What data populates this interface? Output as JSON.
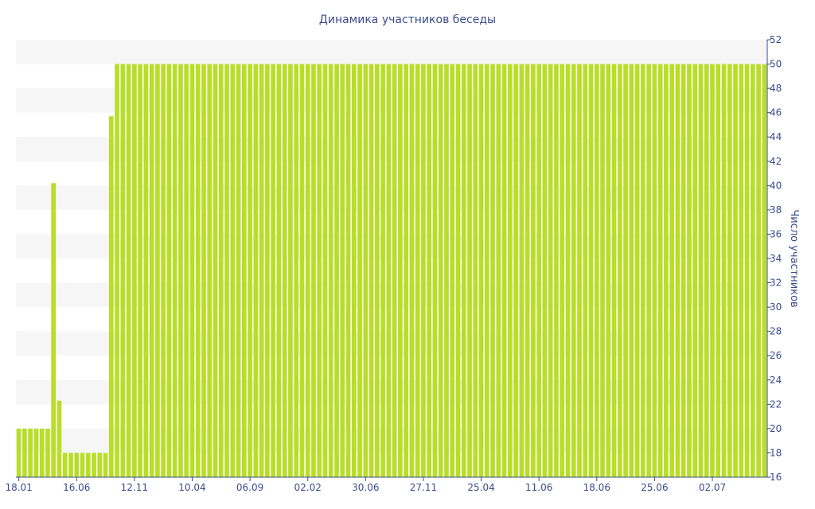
{
  "chart_data": {
    "type": "bar",
    "title": "Динамика участников беседы",
    "ylabel": "Число участников",
    "xlabel": "",
    "ylim": [
      16,
      52
    ],
    "y_ticks": [
      16,
      18,
      20,
      22,
      24,
      26,
      28,
      30,
      32,
      34,
      36,
      38,
      40,
      42,
      44,
      46,
      48,
      50,
      52
    ],
    "x_tick_labels": [
      "18.01",
      "16.06",
      "12.11",
      "10.04",
      "06.09",
      "02.02",
      "30.06",
      "27.11",
      "25.04",
      "11.06",
      "18.06",
      "25.06",
      "02.07"
    ],
    "x_tick_bar_index": [
      0,
      10,
      20,
      30,
      40,
      50,
      60,
      70,
      80,
      90,
      100,
      110,
      120
    ],
    "bar_color": "#b8de28",
    "values": [
      20,
      20,
      20,
      20,
      20,
      20,
      40.2,
      22.3,
      18,
      18,
      18,
      18,
      18,
      18,
      18,
      18,
      45.7,
      50,
      50,
      50,
      50,
      50,
      50,
      50,
      50,
      50,
      50,
      50,
      50,
      50,
      50,
      50,
      50,
      50,
      50,
      50,
      50,
      50,
      50,
      50,
      50,
      50,
      50,
      50,
      50,
      50,
      50,
      50,
      50,
      50,
      50,
      50,
      50,
      50,
      50,
      50,
      50,
      50,
      50,
      50,
      50,
      50,
      50,
      50,
      50,
      50,
      50,
      50,
      50,
      50,
      50,
      50,
      50,
      50,
      50,
      50,
      50,
      50,
      50,
      50,
      50,
      50,
      50,
      50,
      50,
      50,
      50,
      50,
      50,
      50,
      50,
      50,
      50,
      50,
      50,
      50,
      50,
      50,
      50,
      50,
      50,
      50,
      50,
      50,
      50,
      50,
      50,
      50,
      50,
      50,
      50,
      50,
      50,
      50,
      50,
      50,
      50,
      50,
      50,
      50,
      50,
      50,
      50,
      50,
      50,
      50,
      50,
      50,
      50,
      50
    ],
    "grid": "alternating-bands",
    "legend": "none",
    "y_axis_side": "right"
  }
}
